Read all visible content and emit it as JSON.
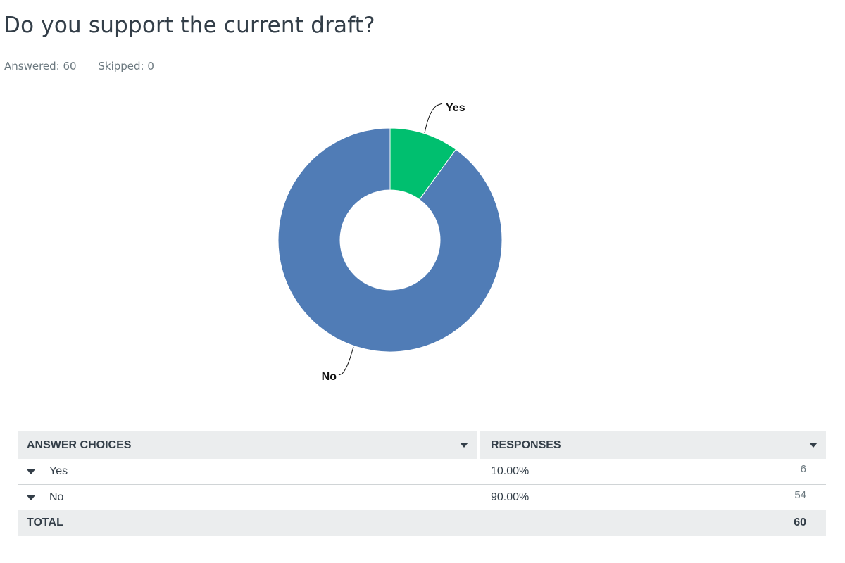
{
  "question": {
    "title": "Do you support the current draft?",
    "answered": "Answered: 60",
    "skipped": "Skipped: 0"
  },
  "colors": {
    "yes": "#00bf6f",
    "no": "#507cb6"
  },
  "chart_data": {
    "type": "pie",
    "variant": "donut",
    "title": "",
    "categories": [
      "Yes",
      "No"
    ],
    "values": [
      6,
      54
    ],
    "percentages": [
      10.0,
      90.0
    ],
    "legend": "none"
  },
  "table": {
    "header_choices": "ANSWER CHOICES",
    "header_responses": "RESPONSES",
    "rows": [
      {
        "label": "Yes",
        "percent": "10.00%",
        "count": "6"
      },
      {
        "label": "No",
        "percent": "90.00%",
        "count": "54"
      }
    ],
    "total_label": "TOTAL",
    "total_value": "60"
  }
}
